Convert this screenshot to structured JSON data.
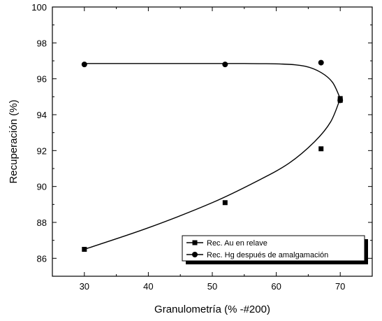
{
  "chart_data": {
    "type": "scatter",
    "xlabel": "Granulometría  (% -#200)",
    "ylabel": "Recuperación  (%)",
    "xlim": [
      25,
      75
    ],
    "ylim": [
      85,
      100
    ],
    "x_ticks": [
      30,
      40,
      50,
      60,
      70
    ],
    "y_ticks": [
      86,
      88,
      90,
      92,
      94,
      96,
      98,
      100
    ],
    "grid": false,
    "legend_position": "bottom-right",
    "series": [
      {
        "name": "Rec. Au en relave",
        "marker": "square",
        "x": [
          30,
          52,
          67,
          70,
          70
        ],
        "y": [
          86.5,
          89.1,
          92.1,
          94.8,
          94.9
        ],
        "curve": [
          [
            30,
            86.5
          ],
          [
            40,
            87.7
          ],
          [
            50,
            89.1
          ],
          [
            57,
            90.3
          ],
          [
            62,
            91.3
          ],
          [
            66,
            92.5
          ],
          [
            68.5,
            93.6
          ],
          [
            70,
            94.9
          ]
        ]
      },
      {
        "name": "Rec. Hg después de amalgamación",
        "marker": "circle",
        "x": [
          30,
          52,
          67,
          70
        ],
        "y": [
          96.8,
          96.8,
          96.9,
          94.8
        ],
        "curve": [
          [
            30,
            96.85
          ],
          [
            45,
            96.85
          ],
          [
            55,
            96.85
          ],
          [
            61,
            96.82
          ],
          [
            64.5,
            96.7
          ],
          [
            67,
            96.35
          ],
          [
            68.8,
            95.8
          ],
          [
            70,
            94.9
          ]
        ]
      }
    ]
  }
}
